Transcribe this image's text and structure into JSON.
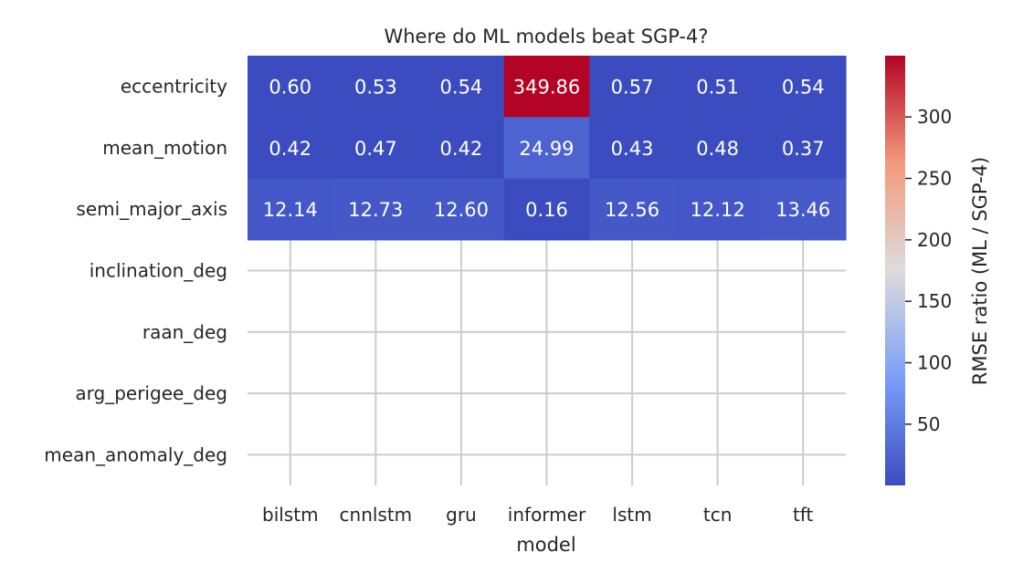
{
  "chart_data": {
    "type": "heatmap",
    "title": "Where do ML models beat SGP-4?",
    "xlabel": "model",
    "ylabel": "",
    "x_categories": [
      "bilstm",
      "cnnlstm",
      "gru",
      "informer",
      "lstm",
      "tcn",
      "tft"
    ],
    "y_categories": [
      "eccentricity",
      "mean_motion",
      "semi_major_axis",
      "inclination_deg",
      "raan_deg",
      "arg_perigee_deg",
      "mean_anomaly_deg"
    ],
    "values": [
      [
        0.6,
        0.53,
        0.54,
        349.86,
        0.57,
        0.51,
        0.54
      ],
      [
        0.42,
        0.47,
        0.42,
        24.99,
        0.43,
        0.48,
        0.37
      ],
      [
        12.14,
        12.73,
        12.6,
        0.16,
        12.56,
        12.12,
        13.46
      ],
      [
        null,
        null,
        null,
        null,
        null,
        null,
        null
      ],
      [
        null,
        null,
        null,
        null,
        null,
        null,
        null
      ],
      [
        null,
        null,
        null,
        null,
        null,
        null,
        null
      ],
      [
        null,
        null,
        null,
        null,
        null,
        null,
        null
      ]
    ],
    "value_labels": [
      [
        "0.60",
        "0.53",
        "0.54",
        "349.86",
        "0.57",
        "0.51",
        "0.54"
      ],
      [
        "0.42",
        "0.47",
        "0.42",
        "24.99",
        "0.43",
        "0.48",
        "0.37"
      ],
      [
        "12.14",
        "12.73",
        "12.60",
        "0.16",
        "12.56",
        "12.12",
        "13.46"
      ]
    ],
    "colormap": "coolwarm",
    "colorbar": {
      "label": "RMSE ratio (ML / SGP-4)",
      "range": [
        0.16,
        349.86
      ],
      "ticks": [
        50,
        100,
        150,
        200,
        250,
        300
      ],
      "tick_labels": [
        "50",
        "100",
        "150",
        "200",
        "250",
        "300"
      ]
    },
    "grid": true
  }
}
